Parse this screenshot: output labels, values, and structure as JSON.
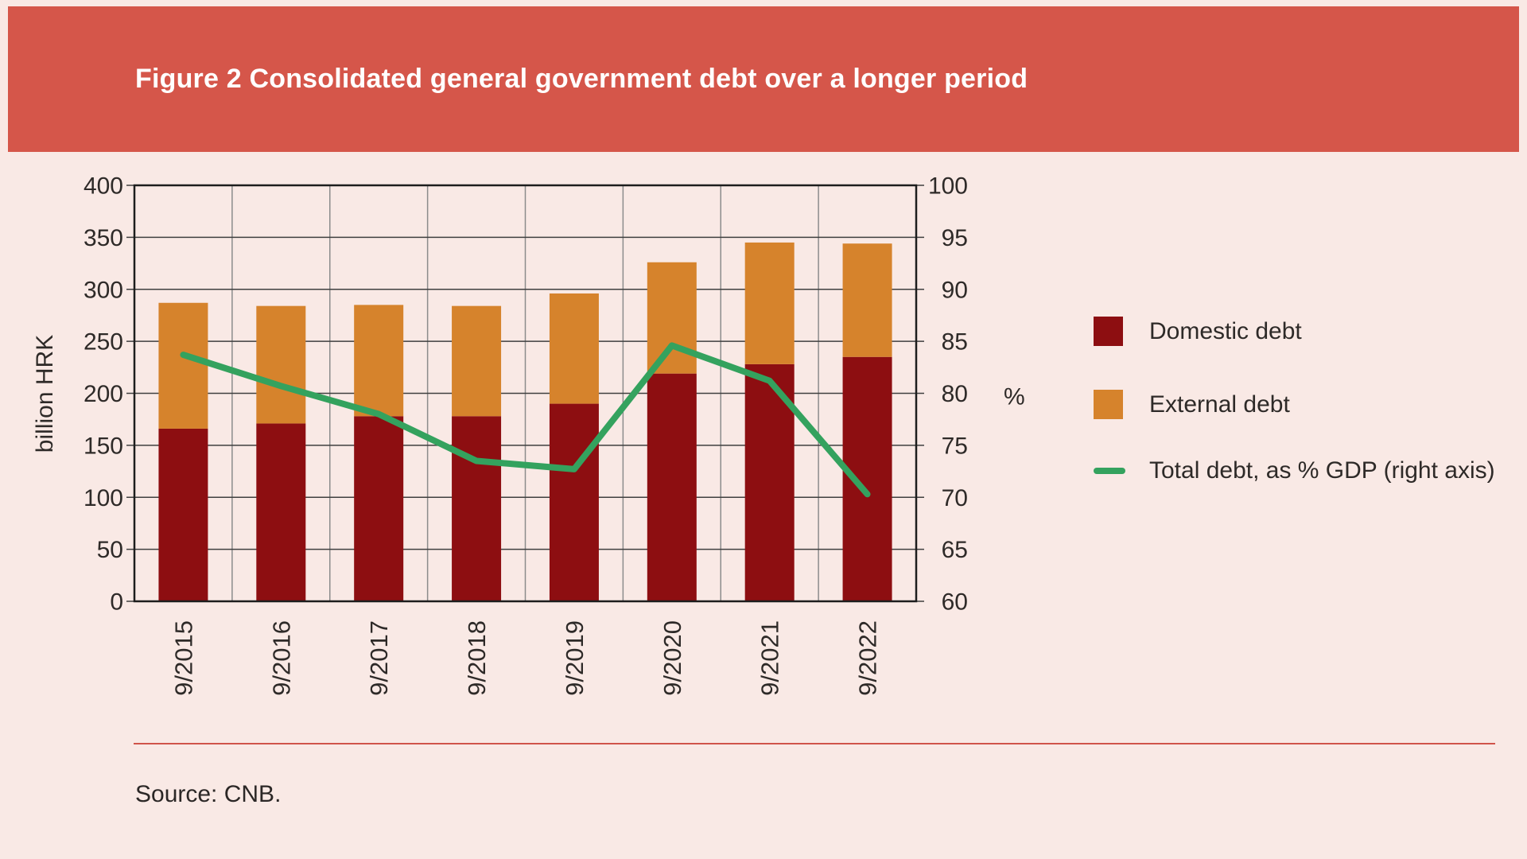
{
  "header": {
    "title": "Figure 2 Consolidated general government debt over a longer period"
  },
  "colors": {
    "header_bg": "#d5564a",
    "page_bg": "#f9e9e5",
    "domestic_bar": "#8d0e11",
    "external_bar": "#d6832c",
    "gdp_line": "#34a25e",
    "grid_h": "#3f3f3f",
    "grid_v": "#8c8c8c",
    "border": "#1d1d1d",
    "footer_rule": "#d0544a",
    "title_text": "#ffffff"
  },
  "chart_data": {
    "type": "bar",
    "stacked": true,
    "categories": [
      "9/2015",
      "9/2016",
      "9/2017",
      "9/2018",
      "9/2019",
      "9/2020",
      "9/2021",
      "9/2022"
    ],
    "series": [
      {
        "name": "Domestic debt",
        "type": "bar",
        "axis": "left",
        "color": "#8d0e11",
        "values": [
          166,
          171,
          178,
          178,
          190,
          219,
          228,
          235
        ]
      },
      {
        "name": "External debt",
        "type": "bar",
        "axis": "left",
        "color": "#d6832c",
        "values": [
          121,
          113,
          107,
          106,
          106,
          107,
          117,
          109
        ]
      },
      {
        "name": "Total debt, as % GDP (right axis)",
        "type": "line",
        "axis": "right",
        "color": "#34a25e",
        "values": [
          83.7,
          80.7,
          78.0,
          73.5,
          72.7,
          84.6,
          81.2,
          70.3
        ]
      }
    ],
    "totals_billion_hrk": [
      287,
      284,
      285,
      284,
      296,
      326,
      345,
      344
    ],
    "left_axis": {
      "label": "billion HRK",
      "min": 0,
      "max": 400,
      "step": 50,
      "ticks": [
        0,
        50,
        100,
        150,
        200,
        250,
        300,
        350,
        400
      ]
    },
    "right_axis": {
      "label": "%",
      "min": 60,
      "max": 100,
      "step": 5,
      "ticks": [
        60,
        65,
        70,
        75,
        80,
        85,
        90,
        95,
        100
      ]
    },
    "grid": true,
    "legend_position": "right"
  },
  "legend": {
    "items": [
      {
        "label": "Domestic debt",
        "color": "#8d0e11",
        "marker": "square"
      },
      {
        "label": "External debt",
        "color": "#d6832c",
        "marker": "square"
      },
      {
        "label": "Total debt, as % GDP (right axis)",
        "color": "#34a25e",
        "marker": "line"
      }
    ]
  },
  "footer": {
    "source": "Source: CNB."
  }
}
